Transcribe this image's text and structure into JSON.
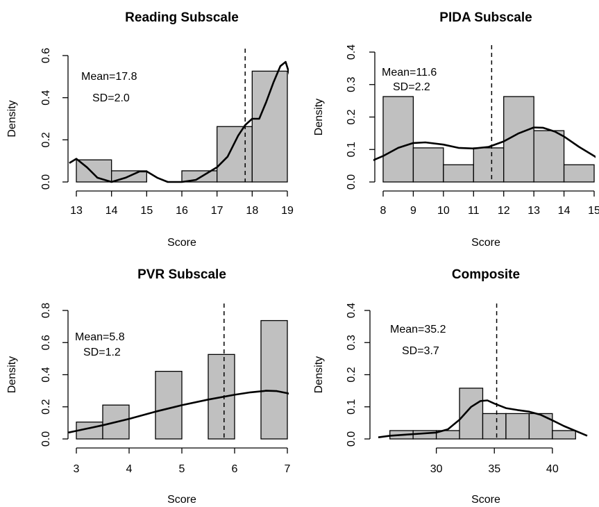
{
  "chart_data": [
    {
      "type": "histogram",
      "title": "Reading Subscale",
      "xlabel": "Score",
      "ylabel": "Density",
      "xlim": [
        13,
        19
      ],
      "ylim": [
        0,
        0.6
      ],
      "xticks": [
        "13",
        "14",
        "15",
        "16",
        "17",
        "18",
        "19"
      ],
      "yticks": [
        "0.0",
        "0.2",
        "0.4",
        "0.6"
      ],
      "bins": [
        [
          13,
          14,
          0.105
        ],
        [
          14,
          15,
          0.053
        ],
        [
          15,
          16,
          0
        ],
        [
          16,
          17,
          0.053
        ],
        [
          17,
          18,
          0.263
        ],
        [
          18,
          19,
          0.526
        ]
      ],
      "mean": 17.8,
      "mean_label": "Mean=17.8",
      "sd_label": "SD=2.0",
      "density_curve": [
        [
          12.8,
          0.09
        ],
        [
          13.0,
          0.11
        ],
        [
          13.3,
          0.07
        ],
        [
          13.6,
          0.02
        ],
        [
          14.0,
          0.0
        ],
        [
          14.4,
          0.02
        ],
        [
          14.8,
          0.05
        ],
        [
          15.0,
          0.05
        ],
        [
          15.3,
          0.02
        ],
        [
          15.6,
          0.0
        ],
        [
          16.0,
          0.0
        ],
        [
          16.4,
          0.01
        ],
        [
          16.7,
          0.04
        ],
        [
          17.0,
          0.07
        ],
        [
          17.3,
          0.12
        ],
        [
          17.6,
          0.22
        ],
        [
          17.8,
          0.27
        ],
        [
          18.0,
          0.3
        ],
        [
          18.2,
          0.3
        ],
        [
          18.4,
          0.38
        ],
        [
          18.6,
          0.47
        ],
        [
          18.8,
          0.55
        ],
        [
          18.95,
          0.57
        ],
        [
          19.1,
          0.49
        ],
        [
          19.2,
          0.4
        ]
      ]
    },
    {
      "type": "histogram",
      "title": "PIDA Subscale",
      "xlabel": "Score",
      "ylabel": "Density",
      "xlim": [
        8,
        15
      ],
      "ylim": [
        0,
        0.4
      ],
      "xticks": [
        "8",
        "9",
        "10",
        "11",
        "12",
        "13",
        "14",
        "15"
      ],
      "yticks": [
        "0.0",
        "0.1",
        "0.2",
        "0.3",
        "0.4"
      ],
      "bins": [
        [
          8,
          9,
          0.263
        ],
        [
          9,
          10,
          0.105
        ],
        [
          10,
          11,
          0.053
        ],
        [
          11,
          12,
          0.105
        ],
        [
          12,
          13,
          0.263
        ],
        [
          13,
          14,
          0.158
        ],
        [
          14,
          15,
          0.053
        ]
      ],
      "mean": 11.6,
      "mean_label": "Mean=11.6",
      "sd_label": "SD=2.2",
      "density_curve": [
        [
          7.5,
          0.06
        ],
        [
          8.0,
          0.08
        ],
        [
          8.5,
          0.105
        ],
        [
          9.0,
          0.12
        ],
        [
          9.4,
          0.122
        ],
        [
          10.0,
          0.115
        ],
        [
          10.5,
          0.105
        ],
        [
          11.0,
          0.103
        ],
        [
          11.5,
          0.108
        ],
        [
          12.0,
          0.125
        ],
        [
          12.5,
          0.15
        ],
        [
          13.0,
          0.168
        ],
        [
          13.3,
          0.167
        ],
        [
          13.7,
          0.155
        ],
        [
          14.0,
          0.14
        ],
        [
          14.5,
          0.108
        ],
        [
          15.0,
          0.08
        ],
        [
          15.2,
          0.067
        ]
      ]
    },
    {
      "type": "histogram",
      "title": "PVR Subscale",
      "xlabel": "Score",
      "ylabel": "Density",
      "xlim": [
        3,
        7
      ],
      "ylim": [
        0,
        0.8
      ],
      "xticks": [
        "3",
        "4",
        "5",
        "6",
        "7"
      ],
      "yticks": [
        "0.0",
        "0.2",
        "0.4",
        "0.6",
        "0.8"
      ],
      "bins": [
        [
          3,
          3.5,
          0.105
        ],
        [
          3.5,
          4,
          0.211
        ],
        [
          4,
          4.5,
          0
        ],
        [
          4.5,
          5,
          0.421
        ],
        [
          5,
          5.5,
          0
        ],
        [
          5.5,
          6,
          0.526
        ],
        [
          6,
          6.5,
          0
        ],
        [
          6.5,
          7,
          0.737
        ]
      ],
      "mean": 5.8,
      "mean_label": "Mean=5.8",
      "sd_label": "SD=1.2",
      "density_curve": [
        [
          2.85,
          0.04
        ],
        [
          3.0,
          0.05
        ],
        [
          3.5,
          0.085
        ],
        [
          4.0,
          0.125
        ],
        [
          4.5,
          0.17
        ],
        [
          5.0,
          0.21
        ],
        [
          5.5,
          0.245
        ],
        [
          6.0,
          0.275
        ],
        [
          6.3,
          0.29
        ],
        [
          6.6,
          0.3
        ],
        [
          6.8,
          0.298
        ],
        [
          7.0,
          0.285
        ],
        [
          7.2,
          0.262
        ]
      ]
    },
    {
      "type": "histogram",
      "title": "Composite",
      "xlabel": "Score",
      "ylabel": "Density",
      "xlim": [
        25,
        43
      ],
      "ylim": [
        0,
        0.4
      ],
      "xticks": [
        "30",
        "35",
        "40"
      ],
      "yticks": [
        "0.0",
        "0.1",
        "0.2",
        "0.3",
        "0.4"
      ],
      "bins": [
        [
          26,
          28,
          0.026
        ],
        [
          28,
          30,
          0.026
        ],
        [
          30,
          32,
          0.026
        ],
        [
          32,
          34,
          0.158
        ],
        [
          34,
          36,
          0.079
        ],
        [
          36,
          38,
          0.079
        ],
        [
          38,
          40,
          0.079
        ],
        [
          40,
          42,
          0.026
        ]
      ],
      "mean": 35.2,
      "mean_label": "Mean=35.2",
      "sd_label": "SD=3.7",
      "density_curve": [
        [
          25.0,
          0.005
        ],
        [
          26.0,
          0.01
        ],
        [
          28.0,
          0.015
        ],
        [
          30.0,
          0.02
        ],
        [
          31.0,
          0.03
        ],
        [
          32.0,
          0.06
        ],
        [
          33.0,
          0.1
        ],
        [
          33.8,
          0.118
        ],
        [
          34.4,
          0.12
        ],
        [
          35.0,
          0.11
        ],
        [
          36.0,
          0.096
        ],
        [
          37.0,
          0.09
        ],
        [
          38.0,
          0.085
        ],
        [
          39.0,
          0.075
        ],
        [
          40.0,
          0.058
        ],
        [
          41.0,
          0.04
        ],
        [
          42.0,
          0.025
        ],
        [
          43.0,
          0.01
        ]
      ]
    }
  ]
}
